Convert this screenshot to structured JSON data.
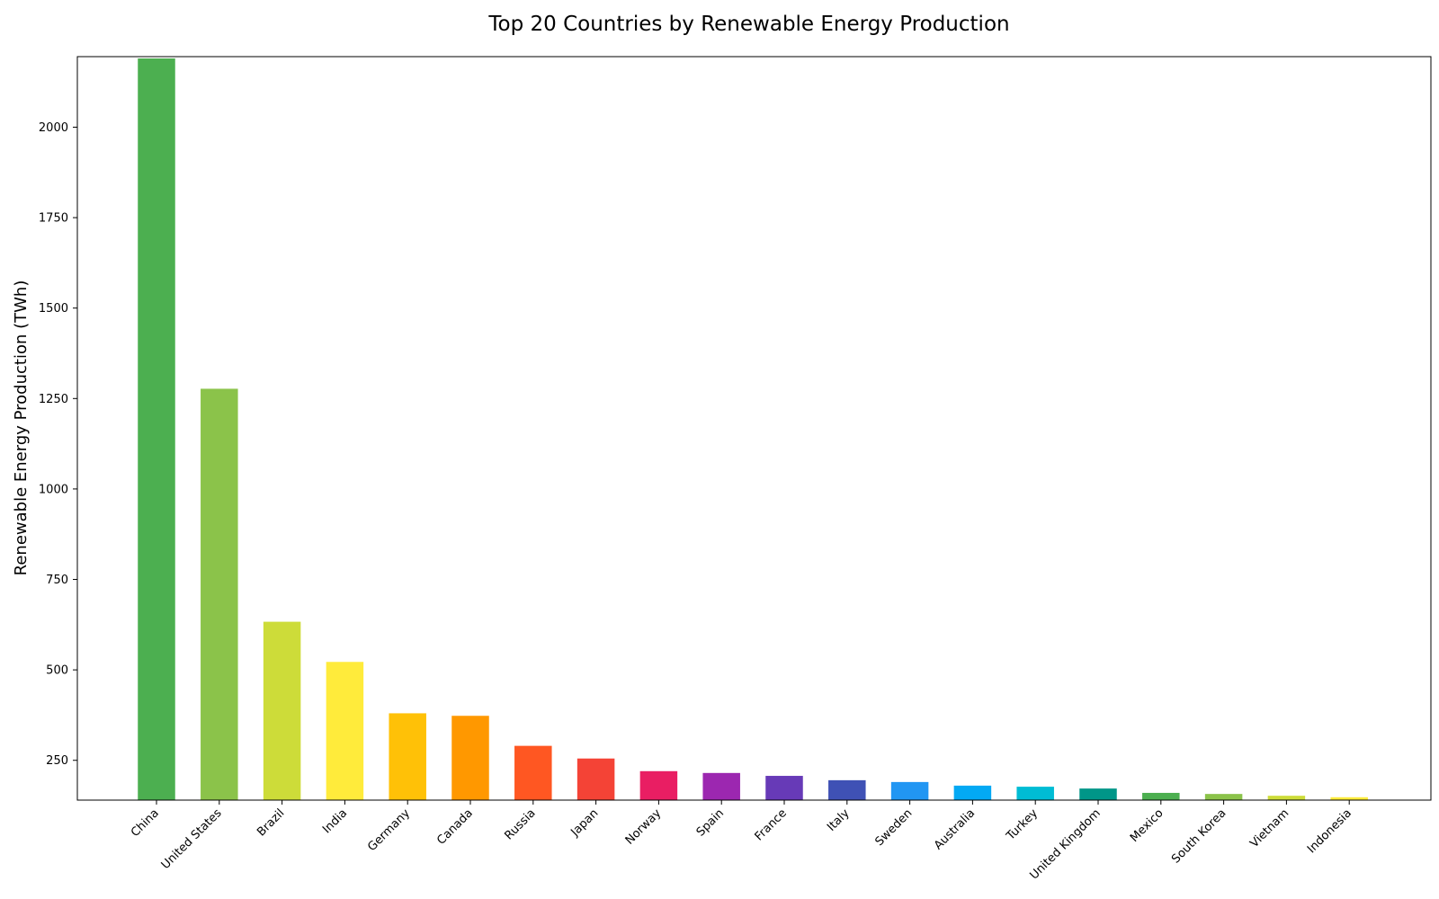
{
  "chart_data": {
    "type": "bar",
    "title": "Top 20 Countries by Renewable Energy Production",
    "xlabel": "",
    "ylabel": "Renewable Energy Production (TWh)",
    "ylim": [
      140,
      2195
    ],
    "yticks": [
      250,
      500,
      750,
      1000,
      1250,
      1500,
      1750,
      2000
    ],
    "grid": false,
    "legend": "none",
    "categories": [
      "China",
      "United States",
      "Brazil",
      "India",
      "Germany",
      "Canada",
      "Russia",
      "Japan",
      "Norway",
      "Spain",
      "France",
      "Italy",
      "Sweden",
      "Australia",
      "Turkey",
      "United Kingdom",
      "Mexico",
      "South Korea",
      "Vietnam",
      "Indonesia"
    ],
    "values": [
      2190,
      1277,
      633,
      522,
      380,
      373,
      290,
      255,
      220,
      215,
      207,
      195,
      190,
      180,
      177,
      172,
      160,
      157,
      152,
      148
    ],
    "colors": [
      "#4CAF50",
      "#8BC34A",
      "#CDDC39",
      "#FFEB3B",
      "#FFC107",
      "#FF9800",
      "#FF5722",
      "#F44336",
      "#E91E63",
      "#9C27B0",
      "#673AB7",
      "#3F51B5",
      "#2196F3",
      "#03A9F4",
      "#00BCD4",
      "#009688",
      "#4CAF50",
      "#8BC34A",
      "#CDDC39",
      "#FFEB3B"
    ]
  }
}
